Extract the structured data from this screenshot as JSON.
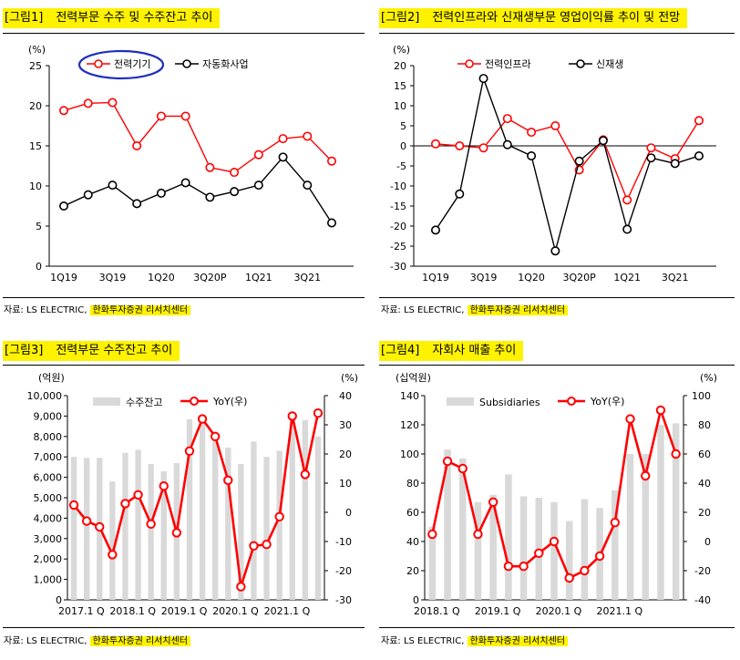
{
  "colors": {
    "red": "#ff0000",
    "black": "#000000",
    "bar": "#d9d9d9",
    "highlight": "#fff200",
    "annot": "#1f2fbf"
  },
  "panels": [
    {
      "num": "[그림1]",
      "title": "전력부문 수주 및 수주잔고 추이",
      "source_prefix": "자료: LS ELECTRIC, ",
      "source_highlight": "한화투자증권 리서치센터"
    },
    {
      "num": "[그림2]",
      "title": "전력인프라와 신재생부문 영업이익률 추이 및 전망",
      "source_prefix": "자료: LS ELECTRIC, ",
      "source_highlight": "한화투자증권 리서치센터"
    },
    {
      "num": "[그림3]",
      "title": "전력부문 수주잔고 추이",
      "source_prefix": "자료: LS ELECTRIC, ",
      "source_highlight": "한화투자증권 리서치센터"
    },
    {
      "num": "[그림4]",
      "title": "자회사 매출 추이",
      "source_prefix": "자료: LS ELECTRIC, ",
      "source_highlight": "한화투자증권 리서치센터"
    }
  ],
  "chart_data": [
    {
      "type": "line",
      "title": "전력부문 수주 및 수주잔고 추이",
      "ylabel": "(%)",
      "ylim": [
        0,
        25
      ],
      "yticks": [
        0,
        5,
        10,
        15,
        20,
        25
      ],
      "categories": [
        "1Q19",
        "2Q19",
        "3Q19",
        "4Q19",
        "1Q20",
        "2Q20",
        "3Q20P",
        "4Q20",
        "1Q21",
        "2Q21",
        "3Q21",
        "4Q21"
      ],
      "xtick_labels": [
        "1Q19",
        "3Q19",
        "1Q20",
        "3Q20P",
        "1Q21",
        "3Q21"
      ],
      "xtick_indices": [
        0,
        2,
        4,
        6,
        8,
        10
      ],
      "series": [
        {
          "name": "전력기기",
          "color": "#ff0000",
          "values": [
            19.4,
            20.3,
            20.4,
            15.0,
            18.7,
            18.7,
            12.3,
            11.7,
            13.9,
            15.9,
            16.2,
            13.1
          ]
        },
        {
          "name": "자동화사업",
          "color": "#000000",
          "values": [
            7.5,
            8.9,
            10.1,
            7.8,
            9.1,
            10.4,
            8.6,
            9.3,
            10.1,
            13.6,
            10.1,
            5.4
          ]
        }
      ],
      "legend": "top"
    },
    {
      "type": "line",
      "title": "전력인프라와 신재생부문 영업이익률 추이 및 전망",
      "ylabel": "(%)",
      "ylim": [
        -30,
        20
      ],
      "yticks": [
        -30,
        -25,
        -20,
        -15,
        -10,
        -5,
        0,
        5,
        10,
        15,
        20
      ],
      "categories": [
        "1Q19",
        "2Q19",
        "3Q19",
        "4Q19",
        "1Q20",
        "2Q20",
        "3Q20P",
        "4Q20",
        "1Q21",
        "2Q21",
        "3Q21",
        "4Q21"
      ],
      "xtick_labels": [
        "1Q19",
        "3Q19",
        "1Q20",
        "3Q20P",
        "1Q21",
        "3Q21"
      ],
      "xtick_indices": [
        0,
        2,
        4,
        6,
        8,
        10
      ],
      "series": [
        {
          "name": "전력인프라",
          "color": "#ff0000",
          "values": [
            0.5,
            0.0,
            -0.5,
            6.8,
            3.4,
            5.0,
            -6.0,
            1.5,
            -13.5,
            -0.5,
            -3.2,
            6.3
          ]
        },
        {
          "name": "신재생",
          "color": "#000000",
          "values": [
            -21.0,
            -12.0,
            16.8,
            0.3,
            -2.5,
            -26.2,
            -3.8,
            1.3,
            -20.8,
            -3.0,
            -4.4,
            -2.5
          ]
        }
      ],
      "legend": "top"
    },
    {
      "type": "bar+line",
      "title": "전력부문 수주잔고 추이",
      "ylabel_left": "(억원)",
      "ylabel_right": "(%)",
      "ylim_left": [
        0,
        10000
      ],
      "ylim_right": [
        -30,
        40
      ],
      "yticks_left": [
        0,
        1000,
        2000,
        3000,
        4000,
        5000,
        6000,
        7000,
        8000,
        9000,
        10000
      ],
      "ytick_labels_left": [
        "0",
        "1,000",
        "2,000",
        "3,000",
        "4,000",
        "5,000",
        "6,000",
        "7,000",
        "8,000",
        "9,000",
        "10,000"
      ],
      "yticks_right": [
        -30,
        -20,
        -10,
        0,
        10,
        20,
        30,
        40
      ],
      "xtick_labels": [
        "2017.1 Q",
        "2018.1 Q",
        "2019.1 Q",
        "2020.1 Q",
        "2021.1 Q"
      ],
      "xtick_indices": [
        0,
        4,
        8,
        12,
        16
      ],
      "bars": {
        "name": "수주잔고",
        "color": "#d9d9d9",
        "values": [
          7000,
          6950,
          6950,
          5800,
          7200,
          7350,
          6650,
          6300,
          6700,
          8850,
          8800,
          7900,
          7450,
          6650,
          7750,
          7000,
          7300,
          9000,
          8800,
          8000
        ]
      },
      "line": {
        "name": "YoY(우)",
        "color": "#ff0000",
        "values": [
          2.5,
          -3.0,
          -5.0,
          -14.5,
          3.0,
          6.0,
          -4.0,
          9.0,
          -7.0,
          21.0,
          32.0,
          26.0,
          11.0,
          -25.5,
          -11.5,
          -11.0,
          -1.5,
          33.0,
          13.0,
          34.0
        ]
      },
      "legend": "top"
    },
    {
      "type": "bar+line",
      "title": "자회사 매출 추이",
      "ylabel_left": "(십억원)",
      "ylabel_right": "(%)",
      "ylim_left": [
        0,
        140
      ],
      "ylim_right": [
        -40,
        100
      ],
      "yticks_left": [
        0,
        20,
        40,
        60,
        80,
        100,
        120,
        140
      ],
      "ytick_labels_left": [
        "0",
        "20",
        "40",
        "60",
        "80",
        "100",
        "120",
        "140"
      ],
      "yticks_right": [
        -40,
        -20,
        0,
        20,
        40,
        60,
        80,
        100
      ],
      "xtick_labels": [
        "2018.1 Q",
        "2019.1 Q",
        "2020.1 Q",
        "2021.1 Q"
      ],
      "xtick_indices": [
        0,
        4,
        8,
        12
      ],
      "bars": {
        "name": "Subsidiaries",
        "color": "#d9d9d9",
        "values": [
          50,
          103,
          97,
          67,
          72,
          86,
          71,
          70,
          67,
          54,
          69,
          63,
          75,
          100,
          100,
          120,
          121
        ]
      },
      "line": {
        "name": "YoY(우)",
        "color": "#ff0000",
        "values": [
          5,
          55,
          50,
          5,
          27,
          -17,
          -17,
          -8,
          0,
          -25,
          -20,
          -10,
          13,
          84,
          45,
          90,
          60
        ]
      },
      "legend": "top"
    }
  ]
}
